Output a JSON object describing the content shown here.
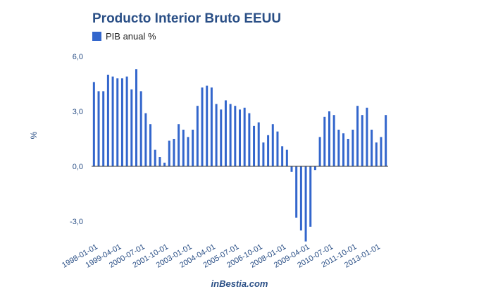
{
  "chart_data": {
    "type": "bar",
    "title": "Producto Interior Bruto EEUU",
    "xlabel": "",
    "ylabel": "%",
    "ylim": [
      -4.2,
      6.0
    ],
    "yticks": [
      "6,0",
      "3,0",
      "0,0",
      "-3,0"
    ],
    "ytick_values": [
      6,
      3,
      0,
      -3
    ],
    "xtick_labels": [
      "1998-01-01",
      "1999-04-01",
      "2000-07-01",
      "2001-10-01",
      "2003-01-01",
      "2004-04-01",
      "2005-07-01",
      "2006-10-01",
      "2008-01-01",
      "2009-04-01",
      "2010-07-01",
      "2011-10-01",
      "2013-01-01"
    ],
    "legend_position": "top-left",
    "bar_color": "#3366cc",
    "series": [
      {
        "name": "PIB anual %",
        "values": [
          4.6,
          4.1,
          4.1,
          5.0,
          4.9,
          4.8,
          4.8,
          4.9,
          4.2,
          5.3,
          4.1,
          2.9,
          2.3,
          0.9,
          0.5,
          0.2,
          1.4,
          1.5,
          2.3,
          2.0,
          1.6,
          2.0,
          3.3,
          4.3,
          4.4,
          4.3,
          3.4,
          3.1,
          3.6,
          3.4,
          3.3,
          3.1,
          3.2,
          2.9,
          2.2,
          2.4,
          1.3,
          1.7,
          2.3,
          1.9,
          1.1,
          0.9,
          -0.3,
          -2.8,
          -3.5,
          -4.1,
          -3.3,
          -0.2,
          1.6,
          2.7,
          3.0,
          2.8,
          2.0,
          1.8,
          1.5,
          2.0,
          3.3,
          2.8,
          3.2,
          2.0,
          1.3,
          1.6,
          2.8
        ]
      }
    ]
  },
  "footer": {
    "source": "inBestia.com"
  }
}
